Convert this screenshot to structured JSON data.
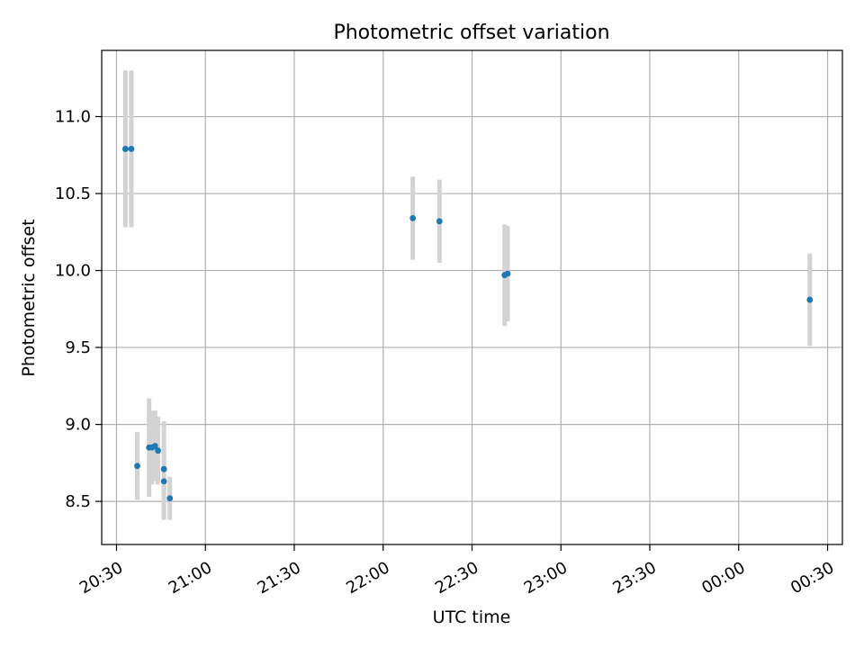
{
  "chart_data": {
    "type": "scatter",
    "title": "Photometric offset variation",
    "xlabel": "UTC time",
    "ylabel": "Photometric offset",
    "x_unit": "time of day (UTC), crossing midnight",
    "xlim": [
      "20:25",
      "24:35"
    ],
    "ylim": [
      8.22,
      11.43
    ],
    "x_ticks": [
      {
        "value": "20:30",
        "label": "20:30"
      },
      {
        "value": "21:00",
        "label": "21:00"
      },
      {
        "value": "21:30",
        "label": "21:30"
      },
      {
        "value": "22:00",
        "label": "22:00"
      },
      {
        "value": "22:30",
        "label": "22:30"
      },
      {
        "value": "23:00",
        "label": "23:00"
      },
      {
        "value": "23:30",
        "label": "23:30"
      },
      {
        "value": "24:00",
        "label": "00:00"
      },
      {
        "value": "24:30",
        "label": "00:30"
      }
    ],
    "y_ticks": [
      8.5,
      9.0,
      9.5,
      10.0,
      10.5,
      11.0
    ],
    "grid": true,
    "series": [
      {
        "color": "#1f77b4",
        "errorbar_color": "#d3d3d3",
        "points": [
          {
            "x": "20:33",
            "y": 10.79,
            "err": 0.51
          },
          {
            "x": "20:35",
            "y": 10.79,
            "err": 0.51
          },
          {
            "x": "20:37",
            "y": 8.73,
            "err": 0.22
          },
          {
            "x": "20:41",
            "y": 8.85,
            "err": 0.32
          },
          {
            "x": "20:42",
            "y": 8.85,
            "err": 0.24
          },
          {
            "x": "20:43",
            "y": 8.86,
            "err": 0.23
          },
          {
            "x": "20:44",
            "y": 8.83,
            "err": 0.22
          },
          {
            "x": "20:46",
            "y": 8.71,
            "err": 0.31
          },
          {
            "x": "20:46",
            "y": 8.63,
            "err": 0.25
          },
          {
            "x": "20:48",
            "y": 8.52,
            "err": 0.14
          },
          {
            "x": "22:10",
            "y": 10.34,
            "err": 0.27
          },
          {
            "x": "22:19",
            "y": 10.32,
            "err": 0.27
          },
          {
            "x": "22:41",
            "y": 9.97,
            "err": 0.33
          },
          {
            "x": "22:42",
            "y": 9.98,
            "err": 0.31
          },
          {
            "x": "24:24",
            "y": 9.81,
            "err": 0.3
          }
        ]
      }
    ]
  }
}
